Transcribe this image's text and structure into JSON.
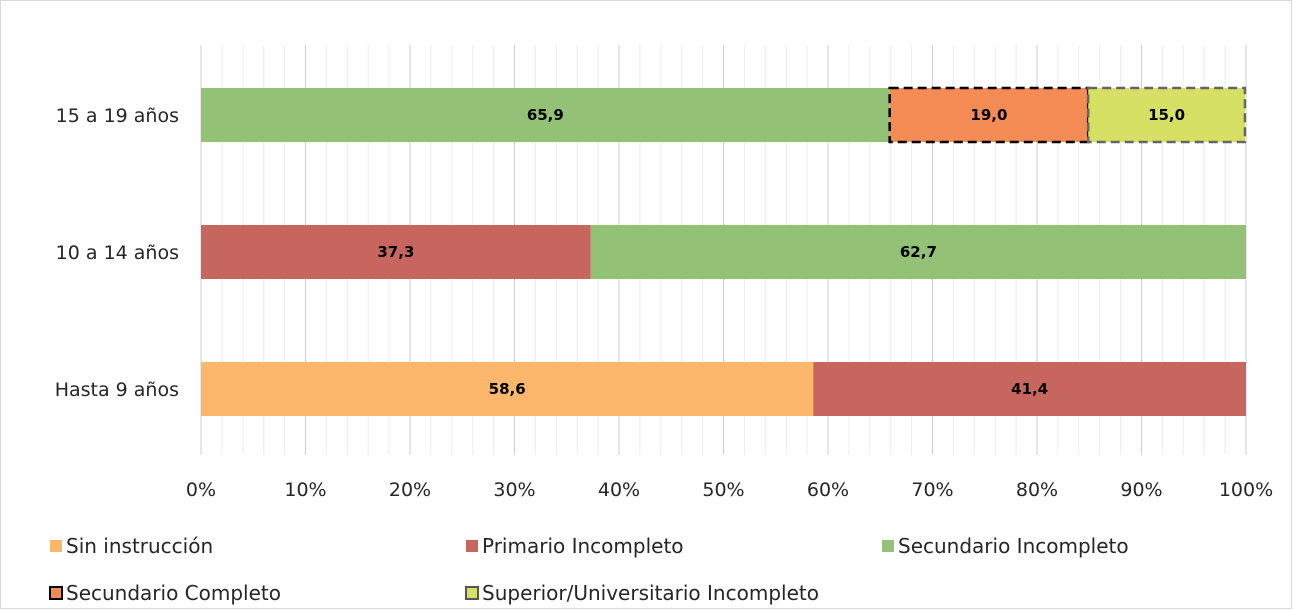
{
  "chart_data": {
    "type": "bar",
    "orientation": "horizontal",
    "stacked": true,
    "percent_stacked": true,
    "categories": [
      "15 a 19 años",
      "10 a 14 años",
      "Hasta 9 años"
    ],
    "series": [
      {
        "name": "Sin instrucción",
        "color": "#fbb76b",
        "values": [
          null,
          null,
          58.6
        ],
        "labels": [
          null,
          null,
          "58,6"
        ]
      },
      {
        "name": "Primario Incompleto",
        "color": "#c6665e",
        "values": [
          null,
          37.3,
          41.4
        ],
        "labels": [
          null,
          "37,3",
          "41,4"
        ]
      },
      {
        "name": "Secundario Incompleto",
        "color": "#93c176",
        "values": [
          65.9,
          62.7,
          null
        ],
        "labels": [
          "65,9",
          "62,7",
          null
        ]
      },
      {
        "name": "Secundario Completo",
        "color": "#f58c55",
        "border": "dashed",
        "values": [
          19.0,
          null,
          null
        ],
        "labels": [
          "19,0",
          null,
          null
        ]
      },
      {
        "name": "Superior/Universitario Incompleto",
        "color": "#d6e065",
        "border": "dashed",
        "values": [
          15.0,
          null,
          null
        ],
        "labels": [
          "15,0",
          null,
          null
        ]
      }
    ],
    "x_ticks": [
      "0%",
      "10%",
      "20%",
      "30%",
      "40%",
      "50%",
      "60%",
      "70%",
      "80%",
      "90%",
      "100%"
    ],
    "xlim": [
      0,
      100
    ],
    "grid": "vertical major and minor",
    "legend_position": "bottom"
  }
}
